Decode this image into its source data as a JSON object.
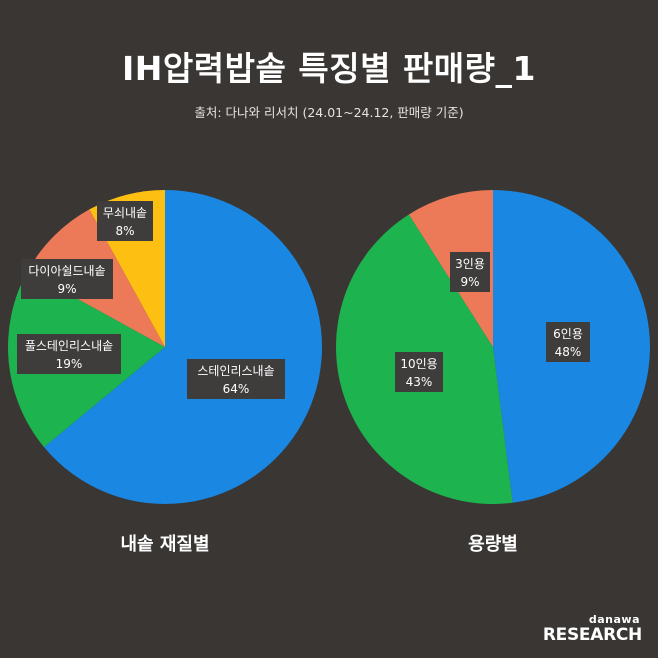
{
  "title": "IH압력밥솥 특징별 판매량_1",
  "subtitle": "출처: 다나와 리서치 (24.01~24.12, 판매량 기준)",
  "brand": {
    "top": "danawa",
    "bottom": "RESEARCH"
  },
  "colors": {
    "blue": "#1a88e2",
    "green": "#1db34f",
    "salmon": "#ec7a58",
    "yellow": "#fdbf11",
    "label_bg": "#3f3d3c"
  },
  "chart_data": [
    {
      "type": "pie",
      "title": "내솥 재질별",
      "slices": [
        {
          "label": "스테인리스내솥",
          "value": 64,
          "value_label": "64%",
          "color": "#1a88e2"
        },
        {
          "label": "풀스테인리스내솥",
          "value": 19,
          "value_label": "19%",
          "color": "#1db34f"
        },
        {
          "label": "다이아쉴드내솥",
          "value": 9,
          "value_label": "9%",
          "color": "#ec7a58"
        },
        {
          "label": "무쇠내솥",
          "value": 8,
          "value_label": "8%",
          "color": "#fdbf11"
        }
      ]
    },
    {
      "type": "pie",
      "title": "용량별",
      "slices": [
        {
          "label": "6인용",
          "value": 48,
          "value_label": "48%",
          "color": "#1a88e2"
        },
        {
          "label": "10인용",
          "value": 43,
          "value_label": "43%",
          "color": "#1db34f"
        },
        {
          "label": "3인용",
          "value": 9,
          "value_label": "9%",
          "color": "#ec7a58"
        }
      ]
    }
  ]
}
